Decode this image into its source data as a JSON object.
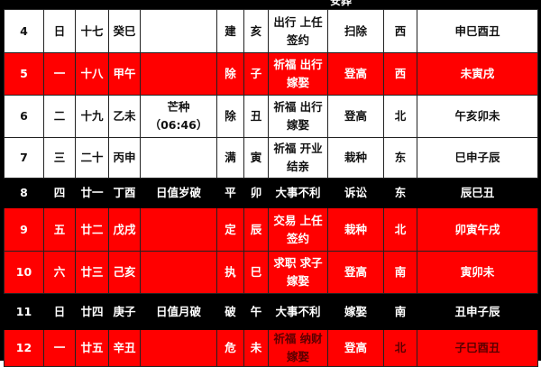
{
  "header_fragment": "安葬",
  "colors": {
    "red": "#ff0000",
    "black": "#000000",
    "white": "#ffffff"
  },
  "rows": [
    {
      "style": "white",
      "day": "4",
      "weekday": "日",
      "lunar": "十七",
      "ganzhi": "癸巳",
      "term": "",
      "term_time": "",
      "officer": "建",
      "zodiac": "亥",
      "yi": [
        "出行 上任",
        "签约"
      ],
      "ji": "扫除",
      "direction": "西",
      "hours": "申巳酉丑"
    },
    {
      "style": "red",
      "day": "5",
      "weekday": "一",
      "lunar": "十八",
      "ganzhi": "甲午",
      "term": "",
      "term_time": "",
      "officer": "除",
      "zodiac": "子",
      "yi": [
        "祈福 出行",
        "嫁娶"
      ],
      "ji": "登高",
      "direction": "西",
      "hours": "未寅戌"
    },
    {
      "style": "white",
      "day": "6",
      "weekday": "二",
      "lunar": "十九",
      "ganzhi": "乙未",
      "term": "芒种",
      "term_time": "（06:46）",
      "officer": "除",
      "zodiac": "丑",
      "yi": [
        "祈福 出行",
        "嫁娶"
      ],
      "ji": "登高",
      "direction": "北",
      "hours": "午亥卯未"
    },
    {
      "style": "white",
      "day": "7",
      "weekday": "三",
      "lunar": "二十",
      "ganzhi": "丙申",
      "term": "",
      "term_time": "",
      "officer": "满",
      "zodiac": "寅",
      "yi": [
        "祈福 开业",
        "结亲"
      ],
      "ji": "栽种",
      "direction": "东",
      "hours": "巳申子辰"
    },
    {
      "style": "black",
      "day": "8",
      "weekday": "四",
      "lunar": "廿一",
      "ganzhi": "丁酉",
      "term": "日值岁破",
      "term_time": "",
      "officer": "平",
      "zodiac": "卯",
      "yi": [
        "大事不利"
      ],
      "ji": "诉讼",
      "direction": "东",
      "hours": "辰巳丑"
    },
    {
      "style": "red",
      "day": "9",
      "weekday": "五",
      "lunar": "廿二",
      "ganzhi": "戊戌",
      "term": "",
      "term_time": "",
      "officer": "定",
      "zodiac": "辰",
      "yi": [
        "交易 上任",
        "签约"
      ],
      "ji": "栽种",
      "direction": "北",
      "hours": "卯寅午戌"
    },
    {
      "style": "red",
      "day": "10",
      "weekday": "六",
      "lunar": "廿三",
      "ganzhi": "己亥",
      "term": "",
      "term_time": "",
      "officer": "执",
      "zodiac": "巳",
      "yi": [
        "求职 求子",
        "嫁娶"
      ],
      "ji": "登高",
      "direction": "南",
      "hours": "寅卯未"
    },
    {
      "style": "black",
      "day": "11",
      "weekday": "日",
      "lunar": "廿四",
      "ganzhi": "庚子",
      "term": "日值月破",
      "term_time": "",
      "officer": "破",
      "zodiac": "午",
      "yi": [
        "大事不利"
      ],
      "ji": "嫁娶",
      "direction": "南",
      "hours": "丑申子辰"
    },
    {
      "style": "red dark",
      "day": "12",
      "weekday": "一",
      "lunar": "廿五",
      "ganzhi": "辛丑",
      "term": "",
      "term_time": "",
      "officer": "危",
      "zodiac": "未",
      "yi": [
        "祈福 纳财",
        "嫁娶"
      ],
      "ji": "登高",
      "direction": "北",
      "hours": "子巳酉丑"
    }
  ]
}
